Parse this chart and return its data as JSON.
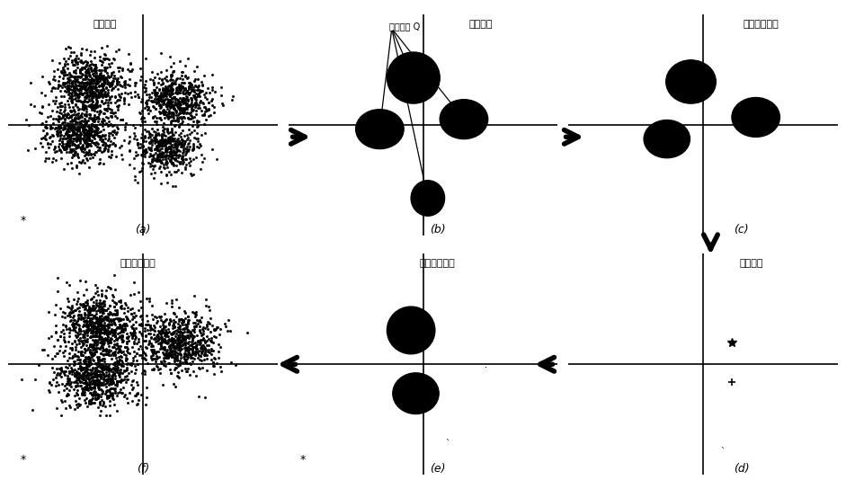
{
  "bg_color": "#ffffff",
  "panel_titles_a": "原始样本",
  "panel_titles_b": "密度方法",
  "panel_titles_c": "发现新一代簇",
  "panel_titles_d": "更新质心",
  "panel_titles_e": "新的质心和簇",
  "panel_titles_f": "高质量的结果",
  "label_b_annotation": "初代质心 Q",
  "arrow_color": "#000000",
  "cluster_color": "#000000",
  "scatter_color": "#000000",
  "text_color": "#000000"
}
